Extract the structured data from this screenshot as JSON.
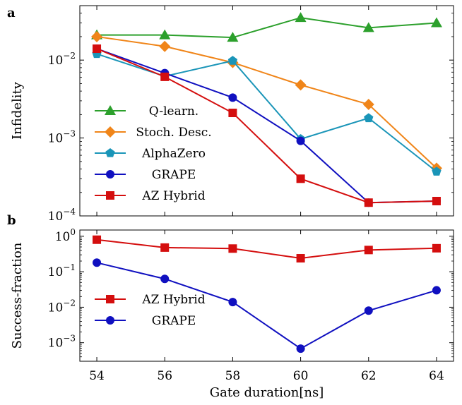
{
  "chart_data": [
    {
      "panel": "a",
      "type": "line",
      "ylabel": "Infidelity",
      "xlabel": "",
      "yscale": "log",
      "ylim": [
        0.0001,
        0.05
      ],
      "xlim": [
        53.5,
        64.5
      ],
      "x": [
        54,
        56,
        58,
        60,
        62,
        64
      ],
      "yticks": [
        {
          "value": 0.0001,
          "base": "10",
          "exp": "−4"
        },
        {
          "value": 0.001,
          "base": "10",
          "exp": "−3"
        },
        {
          "value": 0.01,
          "base": "10",
          "exp": "−2"
        }
      ],
      "legend_position": "lower-left",
      "series": [
        {
          "name": "Q-learn.",
          "color": "#2ca02c",
          "marker": "triangle",
          "values": [
            0.021,
            0.021,
            0.0195,
            0.035,
            0.026,
            0.03
          ]
        },
        {
          "name": "Stoch. Desc.",
          "color": "#f08519",
          "marker": "diamond",
          "values": [
            0.02,
            0.015,
            0.0093,
            0.0048,
            0.0027,
            0.00041
          ]
        },
        {
          "name": "AlphaZero",
          "color": "#1a95b8",
          "marker": "pentagon",
          "values": [
            0.012,
            0.0062,
            0.0098,
            0.00097,
            0.0018,
            0.00037
          ]
        },
        {
          "name": "GRAPE",
          "color": "#1010c0",
          "marker": "circle",
          "values": [
            0.014,
            0.0068,
            0.0033,
            0.00092,
            0.000148,
            0.000155
          ]
        },
        {
          "name": "AZ Hybrid",
          "color": "#d40e0e",
          "marker": "square",
          "values": [
            0.014,
            0.0061,
            0.0021,
            0.0003,
            0.000148,
            0.000155
          ]
        }
      ]
    },
    {
      "panel": "b",
      "type": "line",
      "ylabel": "Success-fraction",
      "xlabel": "Gate duration[ns]",
      "yscale": "log",
      "ylim": [
        0.0003,
        1.5
      ],
      "xlim": [
        53.5,
        64.5
      ],
      "x": [
        54,
        56,
        58,
        60,
        62,
        64
      ],
      "xticks": [
        "54",
        "56",
        "58",
        "60",
        "62",
        "64"
      ],
      "yticks": [
        {
          "value": 0.001,
          "base": "10",
          "exp": "−3"
        },
        {
          "value": 0.01,
          "base": "10",
          "exp": "−2"
        },
        {
          "value": 0.1,
          "base": "10",
          "exp": "−1"
        },
        {
          "value": 1,
          "base": "10",
          "exp": "0"
        }
      ],
      "legend_position": "lower-left",
      "series": [
        {
          "name": "AZ Hybrid",
          "color": "#d40e0e",
          "marker": "square",
          "values": [
            0.8,
            0.48,
            0.45,
            0.24,
            0.41,
            0.46
          ]
        },
        {
          "name": "GRAPE",
          "color": "#1010c0",
          "marker": "circle",
          "values": [
            0.18,
            0.063,
            0.014,
            0.00068,
            0.008,
            0.03
          ]
        }
      ]
    }
  ]
}
